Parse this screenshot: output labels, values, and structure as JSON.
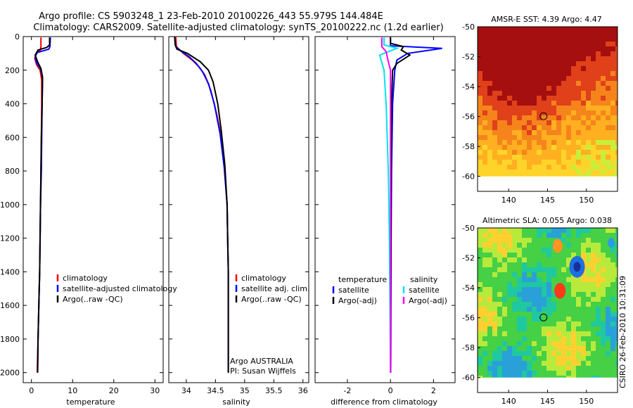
{
  "title_line1": "Argo profile: CS 5903248_1 23-Feb-2010 20100226_443 55.979S 144.484E",
  "title_line2": "Climatology: CARS2009. Satellite-adjusted climatology: synTS_20100222.nc (1.2d earlier)",
  "credit": "CSIRO 26-Feb-2010 10:31:09",
  "colors": {
    "climatology": "#ff0000",
    "satellite": "#0000ff",
    "argo": "#000000",
    "satellite_sal_diff": "#00e5ee",
    "argo_sal_diff": "#ff00ff"
  },
  "chart_data": [
    {
      "id": "temperature",
      "type": "line",
      "xlabel": "temperature",
      "ylabel": "",
      "xlim": [
        -2,
        32
      ],
      "ylim": [
        2060,
        0
      ],
      "xticks": [
        0,
        10,
        20,
        30
      ],
      "yticks": [
        0,
        200,
        400,
        600,
        800,
        1000,
        1200,
        1400,
        1600,
        1800,
        2000
      ],
      "legend": [
        "climatology",
        "satellite-adjusted climatology",
        "Argo(..raw -QC)"
      ],
      "series": [
        {
          "name": "climatology",
          "color": "#ff0000",
          "points": [
            [
              2.3,
              5
            ],
            [
              2.3,
              60
            ],
            [
              2.2,
              80
            ],
            [
              1.2,
              100
            ],
            [
              0.8,
              130
            ],
            [
              1.3,
              170
            ],
            [
              2.1,
              200
            ],
            [
              2.5,
              260
            ],
            [
              2.5,
              400
            ],
            [
              2.4,
              600
            ],
            [
              2.3,
              800
            ],
            [
              2.2,
              1000
            ],
            [
              2.1,
              1200
            ],
            [
              2.0,
              1400
            ],
            [
              1.8,
              1600
            ],
            [
              1.6,
              1800
            ],
            [
              1.4,
              2000
            ]
          ]
        },
        {
          "name": "satellite-adjusted climatology",
          "color": "#0000ff",
          "points": [
            [
              4.6,
              5
            ],
            [
              4.5,
              60
            ],
            [
              4.2,
              75
            ],
            [
              1.4,
              95
            ],
            [
              0.9,
              120
            ],
            [
              1.3,
              160
            ],
            [
              2.2,
              190
            ],
            [
              2.7,
              250
            ],
            [
              2.6,
              400
            ],
            [
              2.5,
              600
            ],
            [
              2.4,
              800
            ],
            [
              2.2,
              1000
            ],
            [
              2.1,
              1200
            ],
            [
              2.0,
              1400
            ],
            [
              1.8,
              1600
            ],
            [
              1.6,
              1800
            ],
            [
              1.5,
              2000
            ]
          ]
        },
        {
          "name": "Argo(..raw -QC)",
          "color": "#000000",
          "points": [
            [
              4.4,
              5
            ],
            [
              4.4,
              50
            ],
            [
              3.7,
              65
            ],
            [
              1.6,
              80
            ],
            [
              0.9,
              110
            ],
            [
              1.5,
              150
            ],
            [
              2.3,
              190
            ],
            [
              2.7,
              240
            ],
            [
              2.6,
              400
            ],
            [
              2.4,
              600
            ],
            [
              2.3,
              800
            ],
            [
              2.2,
              1000
            ],
            [
              2.1,
              1200
            ],
            [
              2.0,
              1400
            ],
            [
              1.8,
              1600
            ],
            [
              1.6,
              1800
            ],
            [
              1.5,
              2000
            ]
          ]
        }
      ]
    },
    {
      "id": "salinity",
      "type": "line",
      "xlabel": "salinity",
      "ylabel": "",
      "xlim": [
        33.7,
        36.1
      ],
      "ylim": [
        2060,
        0
      ],
      "xticks": [
        34,
        34.5,
        35,
        35.5,
        36
      ],
      "legend": [
        "climatology",
        "satellite adj. clim.",
        "Argo(..raw -QC)"
      ],
      "annotation": [
        "Argo AUSTRALIA",
        "PI: Susan Wijffels"
      ],
      "series": [
        {
          "name": "climatology",
          "color": "#ff0000",
          "points": [
            [
              33.82,
              0
            ],
            [
              33.83,
              60
            ],
            [
              33.95,
              100
            ],
            [
              34.1,
              140
            ],
            [
              34.22,
              180
            ],
            [
              34.32,
              230
            ],
            [
              34.42,
              320
            ],
            [
              34.52,
              460
            ],
            [
              34.6,
              600
            ],
            [
              34.66,
              800
            ],
            [
              34.7,
              1000
            ],
            [
              34.71,
              1200
            ],
            [
              34.72,
              1400
            ],
            [
              34.72,
              1600
            ],
            [
              34.72,
              1800
            ],
            [
              34.72,
              2000
            ]
          ]
        },
        {
          "name": "satellite adj. clim.",
          "color": "#0000ff",
          "points": [
            [
              33.8,
              0
            ],
            [
              33.82,
              60
            ],
            [
              33.92,
              90
            ],
            [
              34.05,
              120
            ],
            [
              34.17,
              160
            ],
            [
              34.28,
              210
            ],
            [
              34.38,
              280
            ],
            [
              34.48,
              400
            ],
            [
              34.58,
              580
            ],
            [
              34.65,
              780
            ],
            [
              34.7,
              1000
            ],
            [
              34.71,
              1200
            ],
            [
              34.72,
              1400
            ],
            [
              34.72,
              1600
            ],
            [
              34.72,
              1800
            ],
            [
              34.72,
              2000
            ]
          ]
        },
        {
          "name": "Argo(..raw -QC)",
          "color": "#000000",
          "points": [
            [
              33.8,
              0
            ],
            [
              33.81,
              50
            ],
            [
              33.84,
              75
            ],
            [
              34.02,
              100
            ],
            [
              34.24,
              150
            ],
            [
              34.38,
              200
            ],
            [
              34.46,
              270
            ],
            [
              34.54,
              400
            ],
            [
              34.6,
              560
            ],
            [
              34.66,
              760
            ],
            [
              34.7,
              1000
            ],
            [
              34.71,
              1200
            ],
            [
              34.72,
              1400
            ],
            [
              34.72,
              1600
            ],
            [
              34.72,
              1800
            ],
            [
              34.72,
              2000
            ]
          ]
        }
      ]
    },
    {
      "id": "difference",
      "type": "line",
      "xlabel": "difference from climatology",
      "ylabel": "",
      "xlim": [
        -3.5,
        3.0
      ],
      "ylim": [
        2060,
        0
      ],
      "xticks": [
        -2,
        0,
        2
      ],
      "legend_left_header": "temperature",
      "legend_right_header": "salinity",
      "legend_left": [
        "satellite",
        "Argo(-adj)"
      ],
      "legend_right": [
        "satellite",
        "Argo(-adj)"
      ],
      "series": [
        {
          "name": "temperature satellite",
          "color": "#0000ff",
          "points": [
            [
              0,
              5
            ],
            [
              0,
              55
            ],
            [
              2.4,
              70
            ],
            [
              0.8,
              100
            ],
            [
              0.3,
              140
            ],
            [
              0.2,
              200
            ],
            [
              0.1,
              400
            ],
            [
              0.05,
              800
            ],
            [
              0.03,
              1200
            ],
            [
              0.02,
              1600
            ],
            [
              0.01,
              2000
            ]
          ]
        },
        {
          "name": "temperature Argo(-adj)",
          "color": "#000000",
          "points": [
            [
              0,
              5
            ],
            [
              0,
              40
            ],
            [
              0.6,
              60
            ],
            [
              0.5,
              80
            ],
            [
              0.9,
              110
            ],
            [
              0.3,
              160
            ],
            [
              0.1,
              200
            ],
            [
              0.05,
              400
            ],
            [
              0.03,
              800
            ],
            [
              0.02,
              1200
            ],
            [
              0.01,
              1600
            ],
            [
              0.01,
              2000
            ]
          ]
        },
        {
          "name": "salinity satellite",
          "color": "#00e5ee",
          "points": [
            [
              -0.3,
              5
            ],
            [
              -0.3,
              50
            ],
            [
              0.3,
              70
            ],
            [
              -0.5,
              110
            ],
            [
              -0.3,
              200
            ],
            [
              -0.2,
              400
            ],
            [
              -0.1,
              800
            ],
            [
              -0.05,
              1200
            ],
            [
              -0.02,
              1600
            ],
            [
              0,
              2000
            ]
          ]
        },
        {
          "name": "salinity Argo(-adj)",
          "color": "#ff00ff",
          "points": [
            [
              -0.4,
              5
            ],
            [
              -0.4,
              60
            ],
            [
              -0.2,
              90
            ],
            [
              -0.1,
              150
            ],
            [
              0,
              200
            ],
            [
              0,
              400
            ],
            [
              0,
              2000
            ]
          ]
        }
      ]
    },
    {
      "id": "sst_map",
      "type": "heatmap",
      "title": "AMSR-E SST: 4.39 Argo: 4.47",
      "xlim": [
        136,
        154
      ],
      "ylim": [
        -61,
        -50
      ],
      "xticks": [
        140,
        145,
        150
      ],
      "yticks": [
        -50,
        -52,
        -54,
        -56,
        -58,
        -60
      ],
      "marker": [
        144.48,
        -55.98
      ]
    },
    {
      "id": "sla_map",
      "type": "heatmap",
      "title": "Altimetric SLA: 0.055 Argo: 0.038",
      "xlim": [
        136,
        154
      ],
      "ylim": [
        -61,
        -50
      ],
      "xticks": [
        140,
        145,
        150
      ],
      "yticks": [
        -50,
        -52,
        -54,
        -56,
        -58,
        -60
      ],
      "marker": [
        144.48,
        -55.98
      ]
    }
  ]
}
